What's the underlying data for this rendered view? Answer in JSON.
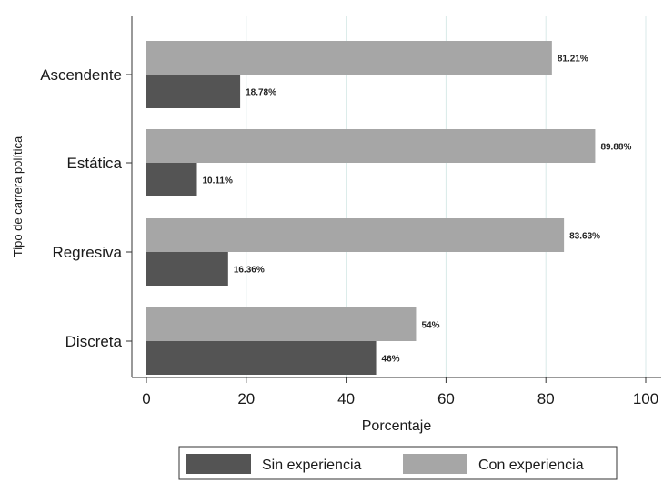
{
  "chart_data": {
    "type": "bar",
    "orientation": "horizontal",
    "categories": [
      "Ascendente",
      "Estática",
      "Regresiva",
      "Discreta"
    ],
    "series": [
      {
        "name": "Sin experiencia",
        "values": [
          18.78,
          10.11,
          16.36,
          46
        ],
        "labels": [
          "18.78%",
          "10.11%",
          "16.36%",
          "46%"
        ],
        "color": "#545454"
      },
      {
        "name": "Con experiencia",
        "values": [
          81.21,
          89.88,
          83.63,
          54
        ],
        "labels": [
          "81.21%",
          "89.88%",
          "83.63%",
          "54%"
        ],
        "color": "#a6a6a6"
      }
    ],
    "xlabel": "Porcentaje",
    "ylabel": "Tipo de carrera política",
    "xlim": [
      0,
      100
    ],
    "xticks": [
      0,
      20,
      40,
      60,
      80,
      100
    ],
    "grid": true,
    "grid_color": "#d9eae8",
    "legend_position": "bottom"
  }
}
